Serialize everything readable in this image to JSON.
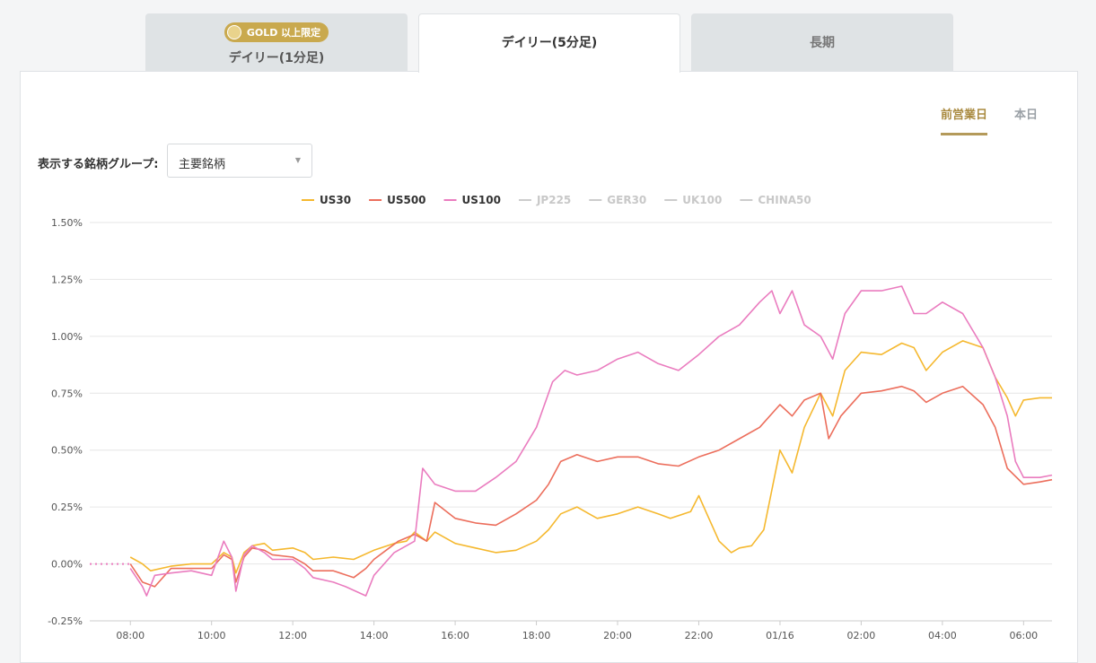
{
  "tabs": [
    {
      "label": "デイリー(1分足)",
      "badge": "GOLD 以上限定",
      "active": false
    },
    {
      "label": "デイリー(5分足)",
      "active": true
    },
    {
      "label": "長期",
      "active": false
    }
  ],
  "day_tabs": [
    {
      "label": "前営業日",
      "active": true
    },
    {
      "label": "本日",
      "active": false
    }
  ],
  "group_select": {
    "label": "表示する銘柄グループ:",
    "value": "主要銘柄"
  },
  "colors": {
    "US30": "#f5b82e",
    "US500": "#ec6e5c",
    "US100": "#ea7cbf",
    "inactive": "#cccccc",
    "gold": "#c9a94e"
  },
  "chart_data": {
    "type": "line",
    "x_ticks": [
      "08:00",
      "10:00",
      "12:00",
      "14:00",
      "16:00",
      "18:00",
      "20:00",
      "22:00",
      "01/16",
      "02:00",
      "04:00",
      "06:00"
    ],
    "y_ticks": [
      "1.50%",
      "1.25%",
      "1.00%",
      "0.75%",
      "0.50%",
      "0.25%",
      "0.00%",
      "-0.25%"
    ],
    "ylim": [
      -0.25,
      1.5
    ],
    "x_unit": "hours from 08:00",
    "xlim": [
      -1,
      22.7
    ],
    "legend": [
      {
        "name": "US30",
        "active": true
      },
      {
        "name": "US500",
        "active": true
      },
      {
        "name": "US100",
        "active": true
      },
      {
        "name": "JP225",
        "active": false
      },
      {
        "name": "GER30",
        "active": false
      },
      {
        "name": "UK100",
        "active": false
      },
      {
        "name": "CHINA50",
        "active": false
      }
    ],
    "series": [
      {
        "name": "US30",
        "points": [
          [
            0,
            0.03
          ],
          [
            0.3,
            0
          ],
          [
            0.5,
            -0.03
          ],
          [
            1,
            -0.01
          ],
          [
            1.5,
            0
          ],
          [
            2,
            0.0
          ],
          [
            2.3,
            0.05
          ],
          [
            2.5,
            0.03
          ],
          [
            2.6,
            -0.04
          ],
          [
            2.8,
            0.05
          ],
          [
            3,
            0.08
          ],
          [
            3.3,
            0.09
          ],
          [
            3.5,
            0.06
          ],
          [
            4,
            0.07
          ],
          [
            4.3,
            0.05
          ],
          [
            4.5,
            0.02
          ],
          [
            5,
            0.03
          ],
          [
            5.5,
            0.02
          ],
          [
            6,
            0.06
          ],
          [
            6.5,
            0.09
          ],
          [
            6.8,
            0.1
          ],
          [
            7,
            0.14
          ],
          [
            7.3,
            0.1
          ],
          [
            7.5,
            0.14
          ],
          [
            8,
            0.09
          ],
          [
            8.5,
            0.07
          ],
          [
            9,
            0.05
          ],
          [
            9.5,
            0.06
          ],
          [
            10,
            0.1
          ],
          [
            10.3,
            0.15
          ],
          [
            10.6,
            0.22
          ],
          [
            11,
            0.25
          ],
          [
            11.3,
            0.22
          ],
          [
            11.5,
            0.2
          ],
          [
            12,
            0.22
          ],
          [
            12.5,
            0.25
          ],
          [
            13,
            0.22
          ],
          [
            13.3,
            0.2
          ],
          [
            13.8,
            0.23
          ],
          [
            14,
            0.3
          ],
          [
            14.2,
            0.22
          ],
          [
            14.5,
            0.1
          ],
          [
            14.8,
            0.05
          ],
          [
            15,
            0.07
          ],
          [
            15.3,
            0.08
          ],
          [
            15.6,
            0.15
          ],
          [
            16,
            0.5
          ],
          [
            16.3,
            0.4
          ],
          [
            16.6,
            0.6
          ],
          [
            17,
            0.75
          ],
          [
            17.3,
            0.65
          ],
          [
            17.6,
            0.85
          ],
          [
            18,
            0.93
          ],
          [
            18.5,
            0.92
          ],
          [
            19,
            0.97
          ],
          [
            19.3,
            0.95
          ],
          [
            19.6,
            0.85
          ],
          [
            20,
            0.93
          ],
          [
            20.5,
            0.98
          ],
          [
            21,
            0.95
          ],
          [
            21.3,
            0.82
          ],
          [
            21.6,
            0.73
          ],
          [
            21.8,
            0.65
          ],
          [
            22,
            0.72
          ],
          [
            22.4,
            0.73
          ],
          [
            22.7,
            0.73
          ]
        ]
      },
      {
        "name": "US500",
        "points": [
          [
            0,
            0
          ],
          [
            0.3,
            -0.08
          ],
          [
            0.6,
            -0.1
          ],
          [
            1,
            -0.02
          ],
          [
            1.5,
            -0.02
          ],
          [
            2,
            -0.02
          ],
          [
            2.3,
            0.04
          ],
          [
            2.5,
            0.02
          ],
          [
            2.6,
            -0.08
          ],
          [
            2.8,
            0.03
          ],
          [
            3,
            0.07
          ],
          [
            3.3,
            0.06
          ],
          [
            3.5,
            0.04
          ],
          [
            4,
            0.03
          ],
          [
            4.3,
            0.0
          ],
          [
            4.5,
            -0.03
          ],
          [
            5,
            -0.03
          ],
          [
            5.5,
            -0.06
          ],
          [
            5.8,
            -0.02
          ],
          [
            6,
            0.02
          ],
          [
            6.3,
            0.06
          ],
          [
            6.6,
            0.1
          ],
          [
            7,
            0.13
          ],
          [
            7.3,
            0.1
          ],
          [
            7.5,
            0.27
          ],
          [
            8,
            0.2
          ],
          [
            8.5,
            0.18
          ],
          [
            9,
            0.17
          ],
          [
            9.5,
            0.22
          ],
          [
            10,
            0.28
          ],
          [
            10.3,
            0.35
          ],
          [
            10.6,
            0.45
          ],
          [
            11,
            0.48
          ],
          [
            11.5,
            0.45
          ],
          [
            12,
            0.47
          ],
          [
            12.5,
            0.47
          ],
          [
            13,
            0.44
          ],
          [
            13.5,
            0.43
          ],
          [
            14,
            0.47
          ],
          [
            14.5,
            0.5
          ],
          [
            15,
            0.55
          ],
          [
            15.5,
            0.6
          ],
          [
            16,
            0.7
          ],
          [
            16.3,
            0.65
          ],
          [
            16.6,
            0.72
          ],
          [
            17,
            0.75
          ],
          [
            17.2,
            0.55
          ],
          [
            17.5,
            0.65
          ],
          [
            18,
            0.75
          ],
          [
            18.5,
            0.76
          ],
          [
            19,
            0.78
          ],
          [
            19.3,
            0.76
          ],
          [
            19.6,
            0.71
          ],
          [
            20,
            0.75
          ],
          [
            20.5,
            0.78
          ],
          [
            21,
            0.7
          ],
          [
            21.3,
            0.6
          ],
          [
            21.6,
            0.42
          ],
          [
            22,
            0.35
          ],
          [
            22.4,
            0.36
          ],
          [
            22.7,
            0.37
          ]
        ]
      },
      {
        "name": "US100",
        "points": [
          [
            0,
            -0.02
          ],
          [
            0.3,
            -0.1
          ],
          [
            0.4,
            -0.14
          ],
          [
            0.6,
            -0.05
          ],
          [
            1,
            -0.04
          ],
          [
            1.5,
            -0.03
          ],
          [
            2,
            -0.05
          ],
          [
            2.3,
            0.1
          ],
          [
            2.5,
            0.03
          ],
          [
            2.6,
            -0.12
          ],
          [
            2.8,
            0.04
          ],
          [
            3,
            0.08
          ],
          [
            3.3,
            0.05
          ],
          [
            3.5,
            0.02
          ],
          [
            4,
            0.02
          ],
          [
            4.3,
            -0.02
          ],
          [
            4.5,
            -0.06
          ],
          [
            5,
            -0.08
          ],
          [
            5.3,
            -0.1
          ],
          [
            5.8,
            -0.14
          ],
          [
            6,
            -0.05
          ],
          [
            6.5,
            0.05
          ],
          [
            7,
            0.1
          ],
          [
            7.2,
            0.42
          ],
          [
            7.5,
            0.35
          ],
          [
            8,
            0.32
          ],
          [
            8.5,
            0.32
          ],
          [
            9,
            0.38
          ],
          [
            9.5,
            0.45
          ],
          [
            10,
            0.6
          ],
          [
            10.4,
            0.8
          ],
          [
            10.7,
            0.85
          ],
          [
            11,
            0.83
          ],
          [
            11.5,
            0.85
          ],
          [
            12,
            0.9
          ],
          [
            12.5,
            0.93
          ],
          [
            13,
            0.88
          ],
          [
            13.5,
            0.85
          ],
          [
            14,
            0.92
          ],
          [
            14.5,
            1.0
          ],
          [
            15,
            1.05
          ],
          [
            15.5,
            1.15
          ],
          [
            15.8,
            1.2
          ],
          [
            16,
            1.1
          ],
          [
            16.3,
            1.2
          ],
          [
            16.6,
            1.05
          ],
          [
            17,
            1.0
          ],
          [
            17.3,
            0.9
          ],
          [
            17.6,
            1.1
          ],
          [
            18,
            1.2
          ],
          [
            18.5,
            1.2
          ],
          [
            19,
            1.22
          ],
          [
            19.3,
            1.1
          ],
          [
            19.6,
            1.1
          ],
          [
            20,
            1.15
          ],
          [
            20.5,
            1.1
          ],
          [
            21,
            0.95
          ],
          [
            21.3,
            0.82
          ],
          [
            21.6,
            0.65
          ],
          [
            21.8,
            0.45
          ],
          [
            22,
            0.38
          ],
          [
            22.4,
            0.38
          ],
          [
            22.7,
            0.39
          ]
        ]
      }
    ]
  }
}
